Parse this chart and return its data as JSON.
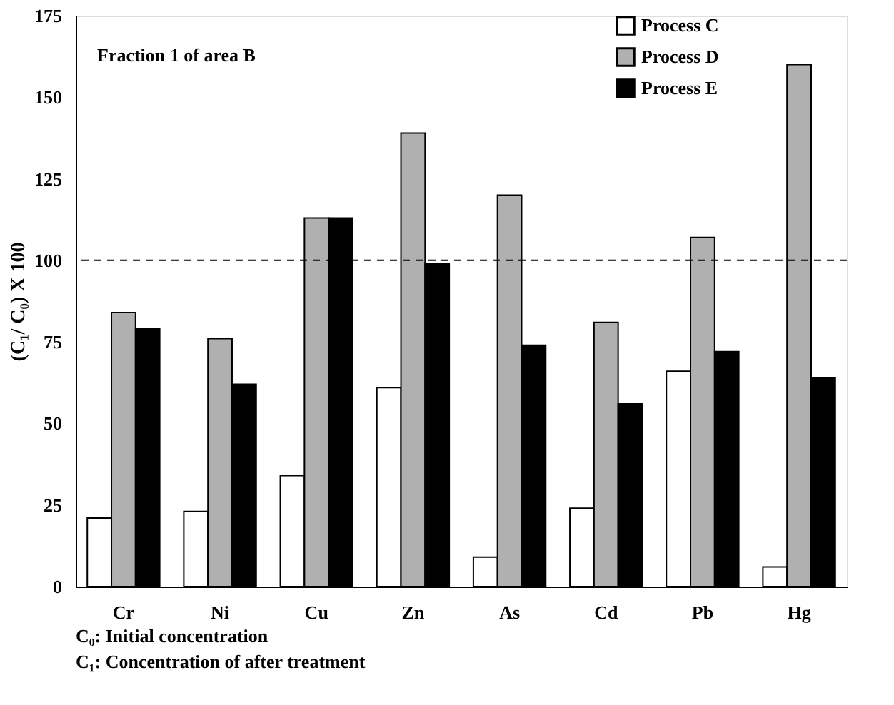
{
  "chart_data": {
    "type": "bar",
    "ylabel": "(C₁/ C₀) X 100",
    "categories": [
      "Cr",
      "Ni",
      "Cu",
      "Zn",
      "As",
      "Cd",
      "Pb",
      "Hg"
    ],
    "series": [
      {
        "name": "Process C",
        "color": "#ffffff",
        "values": [
          21,
          23,
          34,
          61,
          9,
          24,
          66,
          6
        ]
      },
      {
        "name": "Process D",
        "color": "#b0b0b0",
        "values": [
          84,
          76,
          113,
          139,
          120,
          81,
          107,
          160
        ]
      },
      {
        "name": "Process E",
        "color": "#000000",
        "values": [
          79,
          62,
          113,
          99,
          74,
          56,
          72,
          64
        ]
      }
    ],
    "ylim": [
      0,
      175
    ],
    "yticks": [
      0,
      25,
      50,
      75,
      100,
      125,
      150,
      175
    ],
    "ref_lines": [
      {
        "axis": "y",
        "value": 100,
        "line_style": "dashed",
        "color": "#000000"
      }
    ],
    "annotations": [
      "Fraction 1 of area B",
      "C₀: Initial concentration",
      "C₁: Concentration of after treatment"
    ],
    "legend": "top right",
    "grid": false
  }
}
